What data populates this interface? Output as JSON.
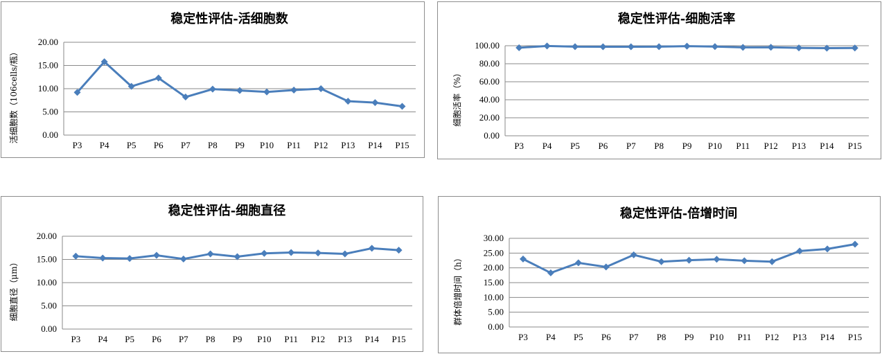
{
  "chart_data": [
    {
      "type": "line",
      "title": "稳定性评估-活细胞数",
      "ylabel": "活细胞数（106cells/瓶）",
      "categories": [
        "P3",
        "P4",
        "P5",
        "P6",
        "P7",
        "P8",
        "P9",
        "P10",
        "P11",
        "P12",
        "P13",
        "P14",
        "P15"
      ],
      "series": [
        {
          "values": [
            9.2,
            15.8,
            10.5,
            12.3,
            8.2,
            9.9,
            9.6,
            9.3,
            9.7,
            10.0,
            7.3,
            7.0,
            6.2
          ]
        }
      ],
      "ylim": [
        0,
        20
      ],
      "yticks": [
        "0.00",
        "5.00",
        "10.00",
        "15.00",
        "20.00"
      ],
      "ytick_values": [
        0,
        5,
        10,
        15,
        20
      ],
      "color": "#4A7EBB",
      "grid": true,
      "legend": "none"
    },
    {
      "type": "line",
      "title": "稳定性评估-细胞活率",
      "ylabel": "细胞活率（%）",
      "categories": [
        "P3",
        "P4",
        "P5",
        "P6",
        "P7",
        "P8",
        "P9",
        "P10",
        "P11",
        "P12",
        "P13",
        "P14",
        "P15"
      ],
      "series": [
        {
          "values": [
            97.8,
            99.7,
            98.9,
            98.8,
            98.8,
            98.9,
            99.5,
            99.0,
            98.2,
            98.3,
            97.6,
            97.3,
            97.5
          ]
        }
      ],
      "ylim": [
        0,
        100
      ],
      "yticks": [
        "0.00",
        "20.00",
        "40.00",
        "60.00",
        "80.00",
        "100.00"
      ],
      "ytick_values": [
        0,
        20,
        40,
        60,
        80,
        100
      ],
      "color": "#4A7EBB",
      "grid": true,
      "legend": "none"
    },
    {
      "type": "line",
      "title": "稳定性评估-细胞直径",
      "ylabel": "细胞直径（μm）",
      "categories": [
        "P3",
        "P4",
        "P5",
        "P6",
        "P7",
        "P8",
        "P9",
        "P10",
        "P11",
        "P12",
        "P13",
        "P14",
        "P15"
      ],
      "series": [
        {
          "values": [
            15.7,
            15.3,
            15.2,
            15.9,
            15.1,
            16.2,
            15.6,
            16.3,
            16.5,
            16.4,
            16.2,
            17.4,
            17.0
          ]
        }
      ],
      "ylim": [
        0,
        20
      ],
      "yticks": [
        "0.00",
        "5.00",
        "10.00",
        "15.00",
        "20.00"
      ],
      "ytick_values": [
        0,
        5,
        10,
        15,
        20
      ],
      "color": "#4A7EBB",
      "grid": true,
      "legend": "none"
    },
    {
      "type": "line",
      "title": "稳定性评估-倍增时间",
      "ylabel": "群体倍增时间（h）",
      "categories": [
        "P3",
        "P4",
        "P5",
        "P6",
        "P7",
        "P8",
        "P9",
        "P10",
        "P11",
        "P12",
        "P13",
        "P14",
        "P15"
      ],
      "series": [
        {
          "values": [
            23.0,
            18.3,
            21.7,
            20.3,
            24.4,
            22.1,
            22.6,
            22.9,
            22.4,
            22.1,
            25.7,
            26.4,
            28.0
          ]
        }
      ],
      "ylim": [
        0,
        30
      ],
      "yticks": [
        "0.00",
        "5.00",
        "10.00",
        "15.00",
        "20.00",
        "25.00",
        "30.00"
      ],
      "ytick_values": [
        0,
        5,
        10,
        15,
        20,
        25,
        30
      ],
      "color": "#4A7EBB",
      "grid": true,
      "legend": "none"
    }
  ]
}
